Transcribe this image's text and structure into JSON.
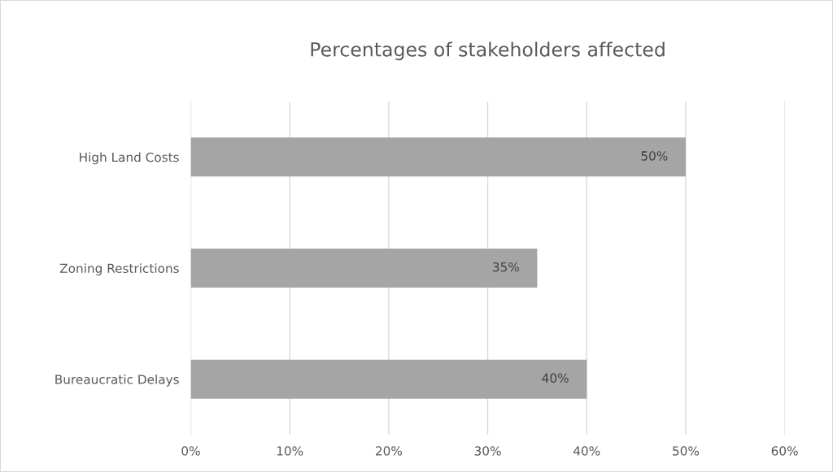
{
  "chart_data": {
    "type": "bar",
    "orientation": "horizontal",
    "title": "Percentages of stakeholders affected",
    "categories": [
      "High Land Costs",
      "Zoning Restrictions",
      "Bureaucratic Delays"
    ],
    "values": [
      50,
      35,
      40
    ],
    "color": "#a5a5a5",
    "value_labels": [
      "50%",
      "35%",
      "40%"
    ],
    "xlim": [
      0,
      60
    ],
    "xticks": [
      {
        "value": 0,
        "label": "0%"
      },
      {
        "value": 10,
        "label": "10%"
      },
      {
        "value": 20,
        "label": "20%"
      },
      {
        "value": 30,
        "label": "30%"
      },
      {
        "value": 40,
        "label": "40%"
      },
      {
        "value": 50,
        "label": "50%"
      },
      {
        "value": 60,
        "label": "60%"
      }
    ],
    "grid": "x",
    "legend": false
  }
}
